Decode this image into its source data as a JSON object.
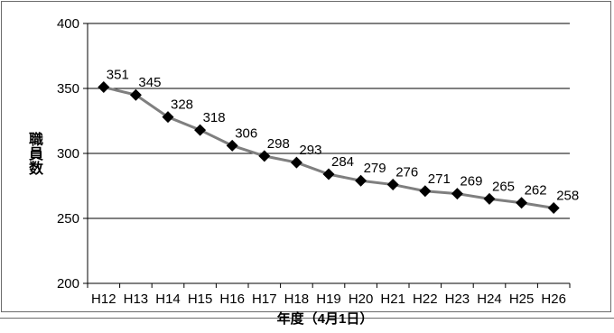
{
  "chart_data": {
    "type": "line",
    "categories": [
      "H12",
      "H13",
      "H14",
      "H15",
      "H16",
      "H17",
      "H18",
      "H19",
      "H20",
      "H21",
      "H22",
      "H23",
      "H24",
      "H25",
      "H26"
    ],
    "series": [
      {
        "values": [
          351,
          345,
          328,
          318,
          306,
          298,
          293,
          284,
          279,
          276,
          271,
          269,
          265,
          262,
          258
        ]
      }
    ],
    "xlabel": "年度（4月1日）",
    "ylabel": "職員数",
    "ylim": [
      200,
      400
    ],
    "yticks": [
      200,
      250,
      300,
      350,
      400
    ],
    "grid": true,
    "legend": "none",
    "colors": {
      "line": "#7f7f7f",
      "marker": "#000000",
      "grid": "#000000"
    }
  }
}
